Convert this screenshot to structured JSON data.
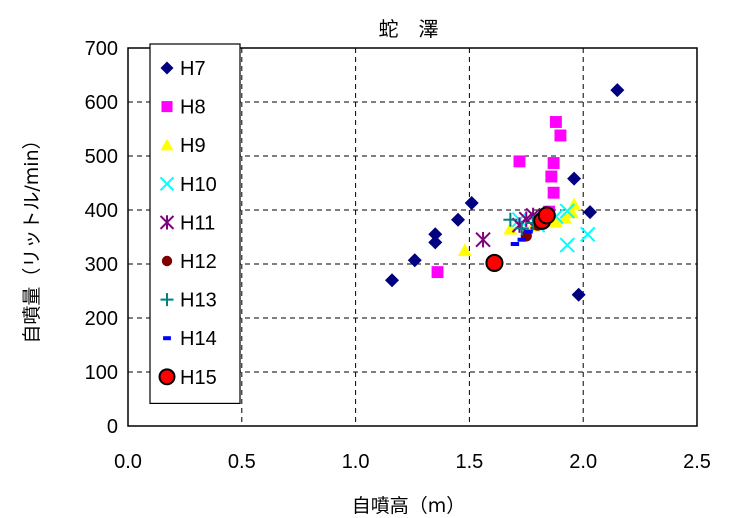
{
  "chart_data": {
    "type": "scatter",
    "title": "蛇　澤",
    "xlabel": "自噴高（m）",
    "ylabel": "自噴量（リットル/min）",
    "xlim": [
      0,
      2.5
    ],
    "ylim": [
      0,
      700
    ],
    "x_ticks": [
      "0.0",
      "0.5",
      "1.0",
      "1.5",
      "2.0",
      "2.5"
    ],
    "y_ticks": [
      "0",
      "100",
      "200",
      "300",
      "400",
      "500",
      "600",
      "700"
    ],
    "grid": "dashed",
    "legend_position": "upper-left",
    "series": [
      {
        "name": "H7",
        "marker": "diamond",
        "color": "#000080",
        "points": [
          [
            1.16,
            270
          ],
          [
            1.26,
            307
          ],
          [
            1.35,
            340
          ],
          [
            1.35,
            355
          ],
          [
            1.45,
            382
          ],
          [
            1.51,
            413
          ],
          [
            1.81,
            383
          ],
          [
            1.96,
            458
          ],
          [
            1.98,
            243
          ],
          [
            2.03,
            396
          ],
          [
            2.15,
            622
          ]
        ]
      },
      {
        "name": "H8",
        "marker": "square",
        "color": "#ff00ff",
        "points": [
          [
            1.36,
            285
          ],
          [
            1.72,
            490
          ],
          [
            1.85,
            397
          ],
          [
            1.86,
            462
          ],
          [
            1.87,
            487
          ],
          [
            1.87,
            432
          ],
          [
            1.88,
            563
          ],
          [
            1.9,
            538
          ]
        ]
      },
      {
        "name": "H9",
        "marker": "triangle",
        "color": "#ffff00",
        "points": [
          [
            1.48,
            325
          ],
          [
            1.68,
            365
          ],
          [
            1.78,
            370
          ],
          [
            1.88,
            378
          ],
          [
            1.92,
            385
          ],
          [
            1.96,
            410
          ],
          [
            1.95,
            395
          ]
        ]
      },
      {
        "name": "H10",
        "marker": "x",
        "color": "#00ffff",
        "points": [
          [
            1.72,
            382
          ],
          [
            1.8,
            372
          ],
          [
            1.88,
            388
          ],
          [
            1.93,
            398
          ],
          [
            1.93,
            335
          ],
          [
            2.02,
            355
          ]
        ]
      },
      {
        "name": "H11",
        "marker": "asterisk",
        "color": "#800080",
        "points": [
          [
            1.56,
            345
          ],
          [
            1.72,
            372
          ],
          [
            1.75,
            383
          ],
          [
            1.78,
            390
          ],
          [
            1.8,
            378
          ]
        ]
      },
      {
        "name": "H12",
        "marker": "circle",
        "color": "#800000",
        "points": [
          [
            1.75,
            352
          ],
          [
            1.8,
            372
          ]
        ]
      },
      {
        "name": "H13",
        "marker": "plus",
        "color": "#008080",
        "points": [
          [
            1.68,
            382
          ],
          [
            1.73,
            366
          ],
          [
            1.78,
            376
          ]
        ]
      },
      {
        "name": "H14",
        "marker": "dash",
        "color": "#0000ff",
        "points": [
          [
            1.7,
            337
          ],
          [
            1.73,
            345
          ],
          [
            1.76,
            360
          ]
        ]
      },
      {
        "name": "H15",
        "marker": "big-circle",
        "color": "#ff0000",
        "points": [
          [
            1.61,
            302
          ],
          [
            1.82,
            380
          ],
          [
            1.84,
            390
          ]
        ]
      }
    ]
  }
}
